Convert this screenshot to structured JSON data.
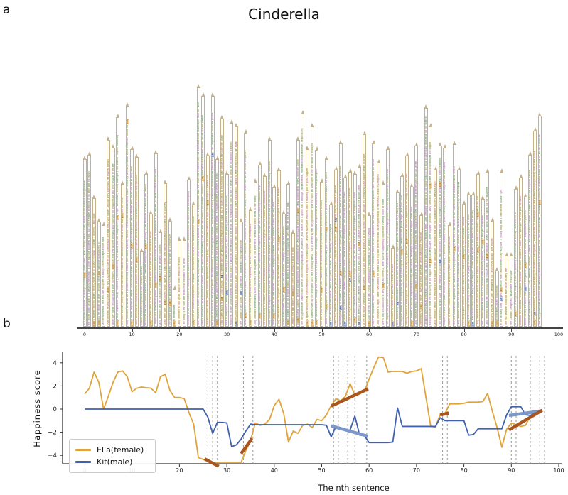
{
  "figure": {
    "title": "Cinderella",
    "panel_a_label": "a",
    "panel_b_label": "b"
  },
  "colors": {
    "female_line": "#DFA33C",
    "male_line": "#4161AE",
    "trend_up_down_female": "#A8551E",
    "trend_male": "#7C98CB",
    "flag_border": "#c4b28c",
    "dashed_guide": "#9a9a9a",
    "female_chip_bg": "#f6d9a0",
    "female_chip_border": "#c8871c",
    "male_chip_bg": "#b9c9ea",
    "male_chip_border": "#3f5fae"
  },
  "story": {
    "female_name": "Ella",
    "male_name": "Kit",
    "sentences": [
      "In a beautiful kingdom , a little girl called Ella ( Eloise Webb ) lives a happy life in a lovely manor house with her doting parents",
      "Her father ( Ben Chaplin ) , a wealthy merchant , is often away on business trips , but always makes the most of his time with his family",
      "Ella 's mother ( Hayley Atwell ) encourages her to believe in magic , courage , kindness , and hope",
      "Ella and her father are grief - stricken when Ella 's mother falls gravely ill",
      "On her deathbed , she tells her daughter to always have courage and be kind",
      "Over the next several years , Ella ( now Lily James ) carries on a comfortable life with her loving father , though they both miss her mother terribly",
      "When her father announces his plan to remarry , Ella gives him her sincere blessing and hopes for his happiness in this new chapter of his life",
      "Ella 's new stepmother , Lady Tremaine ( Cate Blanchett ) , is a widow with two daughters of Ella 's age , Anastasia ( Holliday Grainger ) and Drisella ( Sophie McShera )",
      "The three women , along with their mischievous cat Lucifer , move into the manor house with Ella and her father",
      "Lady Tremaine proves to be a prideful and cold woman with rather unsavory friends , while Anastasia and Drisella bicker constantly and only seem to bond over their disdain for Ella",
      "Ella 's father prepares to depart on another business trip , and asks Ella and her stepsisters what presents they would like him to bring back",
      "While Anastasia and Drisella ask for parasols and lace , Ella merely requests the first branch that brushes his shoulder on his travels",
      "He bids them a loving farewell the following morning",
      "No sooner had her husband departed , Lady Tremaine manipulates Ella into giving up her bedroom to Anastasia and Drisella",
      "Ella then relocated to the attic , where she finds that her mouse friends also reside",
      "Despite this cruel development , Ella remains optimistic and continues to live by her mother 's last request , to have courage and be kind",
      "Lady Tremaine and her daughters treat Ella with ever growing coldness",
      "Some time later , Ella is given tragic news by a local farmer : her father had taken ill and died on his journey",
      "The farmer gives Ella the branch she had requested , along with his condolences",
      "Ella is heartbroken",
      "Lady Tremaine is also upset , but for solely financial reasons",
      "The family is left with dire finances in the wake of his death",
      "Resentful of her new husband for leaving them with no source of income , she takes out her rage on her stepdaughter",
      "Ella bears the mistreatment without complaint , determined to honor her promise to her mother",
      "After dismissing all the household servants , Lady Tremaine shifts the entire workload to Ella , who is so mistreated that she views the endless chores as almost welcome distractions from her woes",
      "After a particularly cruel and hurtful incident , during which her stepfamily dubs her with the infamous nickname ' Cinderella ' , Ella rides her horse into the nearby woods to calm herself",
      "She encounters a stag , fleeing from an approaching hunting party , and her horse takes off in flight while Ella clings on for dear life",
      "Her plight is noticed by the young prince ( Richard Madden ) , out hunting with his men , who manages to stop her horse and introduces himself as ' Kit ' , an ' apprentice ' from the palace",
      "Ella is charmed by the kind apprentice and begs him to leave the stag they are hunting in peace , a request that he promises to honor",
      "While taken aback at Ella 's odd request , Kit is smitten with her beauty and compassionate spirit , but is called back by his hunting party before he can learn her name",
      "Back at the palace , Prince Kit tells his father , the King ( Derek Jacobi ) , about the pretty girl he met in the woods",
      "However , as the King still insists that he must marry a princess for the good of the realm , he sympathizes with his son 's desire to break the occasional tradition",
      "Kit persuades the King and the Grand Duke ( Stellan Skarsgård ) to invite every maiden in the kingdom to the palace ball , hoping to see the mysterious girl again",
      "The Captain of the guard , Kit 's loyal friend , promises to help him find her",
      "While Ella grieves in the market square , the royal crier ( Alex MacQueen ) announces , to the gathered crowd , that a grand ball will be held at the palace",
      "Ella races home to relay the news to her stepfamily , who are overcome with anticipation",
      "Lady Tremaine immediately plans for one of her daughters to win the Prince 's hand and bring riches to the family",
      "When Ella expresses interest in going to the ball , she is scoffed at and ignored , though she is not explicitly forbidden to go",
      "On the evening of the ball , Anastasia and Drisella are decked out in their new gowns and are aflutter with excitement",
      "Lady Tremaine is delighted that she has ' lied honestly ' to her daughters , and is all but convinced that the ball will change the family 's fortunes",
      "When Ella appears in her late mother 's old dress , hoping to join them , Lady Tremaine scorns the very idea",
      "Lady Tremaine and her daughters coolly rip the dress to tatters , leaving Ella behind and forbidding her to attend the ball",
      "As the three women depart , Ella runs into the garden , weeping with rage and sadness",
      "Ella is startled by an old beggar woman sitting in the corner of the courtyard , who asks her for a bit of milk",
      "Despite her own misery , Ella kindly offers the woman a bowl of milk",
      "To Ella 's great surprise , the old lady transforms into a shimmering fairy and introduces herself as Ella 's fairy godmother ( Helena Bonham Carter )",
      "The fairy godmother wastes little time in transforming a pumpkin , four mice , two lizards and a goose into a carriage , white horses , footmen and a coachman , respectively",
      "Ella 's ripped pink dress is transformed into a magnificent blue ball gown , and her shoes are replaced with a dazzling pair of glass slippers",
      "Ella is dumbfounded by the change in luck and is most grateful , but is warned by her fairy godmother that the spell will be broken at the last stroke of midnight",
      "Ella is bundled into the carriage and is sent off to the palace after receiving a charm that will prevent her stepfamily from recognizing her",
      "The ball is just underway as Ella arrives , with scores of princesses being introduced to the Prince and the King",
      "Heads turn as Ella appears at the ballroom balcony ; the assembly goes silent and Ella descends the grand staircase toward the Prince",
      "Kit asks her for the first dance , which she gladly accepts , and the party officially begins",
      "While Lady Tremaine sends her daughters into the fray to compete for the Prince , Ella and Kit slip away to speak in private",
      "Realizing that Kit , of course , is the Prince , Ella is a bit shocked , but , upon getting to know him , sees that he is as kind as he is handsome",
      "Kit speaks of his inner conflict between obeying his father , whom he loves and respects , and pursuing his own heart",
      "Though having a marvelous time with Kit , Ella notices the clock beginning to strike twelve and hastily flees the ballroom",
      "In Ella 's rush to leave the palace before the magic wears off , she loses one of her glass slippers on the palace steps",
      "Kit sends the royal guard after her , wishing to learn who she is , but Ella 's carriage outruns them through the palace gates",
      "At the last stroke of midnight , Ella 's dress , coach and attendants all return to their normal forms , though the remaining glass slipper keeps its shape",
      "Ella walks the rest of the way home , cherishing the memories of her magical evening",
      "When her stepfamily finally arrives home , Ella is in a wonderful mood as the stepsisters talk of the mysterious princess who captivated the Prince",
      "Lady Tremaine is angry , after overhearing the Grand Duke say that the Prince was already promised to Princess Chelina of Zaragosa",
      "She is also suspicious as to why Ella is so cheerful , after such a supposedly unpleasant evening alone at home",
      "The King is nearly dead , and finally gives his son his blessing to marry for love , encouraging him to find the mysterious girl from the ball",
      "Kit promises his father and bids him a tearful farewell",
      "Once made king , Kit immediately sends his men out to find the mystery princess so that he may marry her",
      "All eligible women in the kingdom try on the glass slipper that Ella left behind on the palace steps , but to no avail",
      "Having learned of the kingdom - wide search for the mystery princess , Ella retrieves her own slipper from its hiding place in the attic",
      "Ella is startled to find her stepmother waiting there for her , tauntingly displaying the slipper in her hand",
      "Lady Tremaine finally reveals to Ella the source of her resentment : her beloved first husband had died and left her penniless with two daughters",
      "After marrying Ella 's father , she was left in the same predicament after his death",
      "Dropping the fact that she had to constantly look upon the beloved child of another man , Lady Tremaine demands to be made head of the royal household in exchange for her silence",
      "Having deduced from the discovery of the slipper that Ella was the sought - after mystery princess , Lady Tremaine locks Ella in the attic and smashes the slipper",
      "Lady Tremaine brings the remnants of the slipper to the Grand Duke , revealing that she has locked the mystery princess away",
      "The treacherous Grand Duke , while feigning loyalty to Kit , had concocted a scheme with Lady Tremaine in order to keep Ella away from the throne",
      "Despite this plot , the Duke pretends to honor the new king 's wishes by sending the royal guard to every house in the kingdom with the slipper",
      "House by house , maidens across the kingdom try the slipper without success",
      "The last house in the kingdom to be visited by the royal guard is Ella 's , but she is still locked in her attic room and unaware of their arrival",
      "Lady Tremaine shows the Captain and the Duke into the house , where Anastasia and Drisella unsuccessfully try on the slipper",
      "The men prepare to leave , but are halted by the sound of Ella singing from an upstairs window",
      "Ella , in an attempt to keep her spirits up , is singing the lullaby her mother sang to her as a child",
      "Kit , who had accompanied the guard in disguise , orders the Captain to find the source of the singing",
      "Lady Tremaine has no choice but to lead the Captain upstairs to Ella , but initially refuses to let Ella leave the attic",
      "The Captain reminds her that it is an order from the King himself , and Ella is brought downstairs",
      "Lady Tremaine makes the shockingly false excuse that , as Ella 's mother , she is only doing what is best for her daughter",
      "Ella angrily asserts that Lady Tremaine is not , and never will be , her mother",
      "Ella follows the Captain downstairs",
      "In the drawing room , Kit and Ella finally face each other as they truly are : a young king and a kindhearted country girl",
      "The two promise to accept each other as they are",
      "The Captain , delighted , salutes the new couple",
      "At last , Ella tries on the glass slipper , which fits perfectly and confirms her identity once and for all",
      "Anastasia and Drisella , realizing their stepsister will soon be queen , make hasty apologies for their past behavior",
      "Before leaving the house with Kit and the guards , Ella pauses and offers her stepmother forgiveness",
      "With their wicked plans found out , Lady Tremaine , Anastasia , Drisella , and the Grand Duke are all forced to leave the kingdom forever",
      "Ella and Kit are married , excitedly embarking on their new life together , with portraits of their respective late parents hanging side by side in the palace",
      "The fairy godmother recounts that the newlyweds went on to be kind , just , and beloved rulers , and that Ella continued to see the world not as it is , but as it could be"
    ]
  },
  "axis_a": {
    "ticks": [
      0,
      10,
      20,
      30,
      40,
      50,
      60,
      70,
      80,
      90,
      100
    ]
  },
  "chart_data": {
    "type": "line",
    "title": "",
    "xlabel": "The nth sentence",
    "ylabel": "Happiness score",
    "xlim": [
      -4.5,
      100.5
    ],
    "ylim": [
      -4.9,
      4.9
    ],
    "xticks": [
      0,
      10,
      20,
      30,
      40,
      50,
      60,
      70,
      80,
      90,
      100
    ],
    "yticks": [
      -4,
      -2,
      0,
      2,
      4
    ],
    "grid": false,
    "legend_position": "lower left",
    "x": "sentence index 0..96",
    "series": [
      {
        "name": "Ella(female)",
        "color": "#DFA33C",
        "values": [
          1.3,
          1.8,
          3.2,
          2.3,
          0.0,
          1.1,
          2.3,
          3.2,
          3.3,
          2.8,
          1.5,
          1.8,
          1.9,
          1.85,
          1.8,
          1.4,
          2.8,
          3.0,
          1.6,
          1.0,
          1.0,
          0.9,
          -0.3,
          -1.3,
          -4.2,
          -4.35,
          -4.5,
          -4.75,
          -4.6,
          -4.6,
          -4.6,
          -4.6,
          -4.6,
          -4.6,
          -3.6,
          -2.7,
          -1.2,
          -1.4,
          -1.3,
          -0.9,
          0.3,
          0.85,
          -0.4,
          -2.85,
          -1.9,
          -2.1,
          -1.4,
          -1.3,
          -1.6,
          -0.9,
          -1.0,
          -0.5,
          0.3,
          0.9,
          0.7,
          1.1,
          2.2,
          1.2,
          1.35,
          1.5,
          2.6,
          3.6,
          4.5,
          4.45,
          3.2,
          3.25,
          3.25,
          3.25,
          3.1,
          3.25,
          3.3,
          3.5,
          1.0,
          -1.5,
          -1.55,
          -0.45,
          -0.4,
          0.45,
          0.45,
          0.45,
          0.5,
          0.6,
          0.6,
          0.6,
          0.65,
          1.35,
          -0.2,
          -1.6,
          -3.3,
          -1.75,
          -1.2,
          -1.35,
          -1.5,
          -1.4,
          -0.6,
          -0.2,
          -0.1
        ]
      },
      {
        "name": "Kit(male)",
        "color": "#4161AE",
        "values": [
          0,
          0,
          0,
          0,
          0,
          0,
          0,
          0,
          0,
          0,
          0,
          0,
          0,
          0,
          0,
          0,
          0,
          0,
          0,
          0,
          0,
          0,
          0,
          0,
          0,
          0,
          -0.7,
          -2.1,
          -1.15,
          -1.15,
          -1.2,
          -3.25,
          -3.1,
          -2.6,
          -1.9,
          -1.3,
          -1.35,
          -1.35,
          -1.35,
          -1.35,
          -1.35,
          -1.35,
          -1.35,
          -1.35,
          -1.35,
          -1.35,
          -1.35,
          -1.35,
          -1.35,
          -1.35,
          -1.35,
          -1.4,
          -2.4,
          -1.5,
          -1.6,
          -1.85,
          -1.8,
          -0.6,
          -2.25,
          -2.3,
          -2.9,
          -2.9,
          -2.9,
          -2.9,
          -2.9,
          -2.85,
          0.1,
          -1.5,
          -1.5,
          -1.5,
          -1.5,
          -1.5,
          -1.5,
          -1.5,
          -1.5,
          -0.75,
          -1.0,
          -1.0,
          -1.0,
          -1.0,
          -1.0,
          -2.25,
          -2.2,
          -1.7,
          -1.7,
          -1.7,
          -1.7,
          -1.7,
          -1.7,
          -0.5,
          0.2,
          0.2,
          0.2,
          -0.5,
          -0.55,
          -0.3,
          -0.1
        ]
      }
    ],
    "dashed_x": [
      26,
      27,
      28,
      33.5,
      35.5,
      52.5,
      53.5,
      54.5,
      55.5,
      57,
      59.5,
      75.5,
      76.5,
      90,
      91,
      94,
      96,
      97
    ],
    "trend_segments": [
      {
        "x1": 25.3,
        "y1": -4.3,
        "x2": 28.3,
        "y2": -4.95,
        "color": "#A8551E"
      },
      {
        "x1": 33.0,
        "y1": -3.85,
        "x2": 35.3,
        "y2": -2.55,
        "color": "#A8551E"
      },
      {
        "x1": 52.0,
        "y1": -1.45,
        "x2": 59.8,
        "y2": -2.35,
        "color": "#7C98CB"
      },
      {
        "x1": 52.0,
        "y1": 0.25,
        "x2": 59.8,
        "y2": 1.75,
        "color": "#A8551E"
      },
      {
        "x1": 75.0,
        "y1": -0.5,
        "x2": 76.8,
        "y2": -0.35,
        "color": "#A8551E"
      },
      {
        "x1": 89.5,
        "y1": -0.55,
        "x2": 96.5,
        "y2": -0.15,
        "color": "#7C98CB"
      },
      {
        "x1": 89.5,
        "y1": -1.8,
        "x2": 96.5,
        "y2": -0.1,
        "color": "#A8551E"
      }
    ]
  }
}
